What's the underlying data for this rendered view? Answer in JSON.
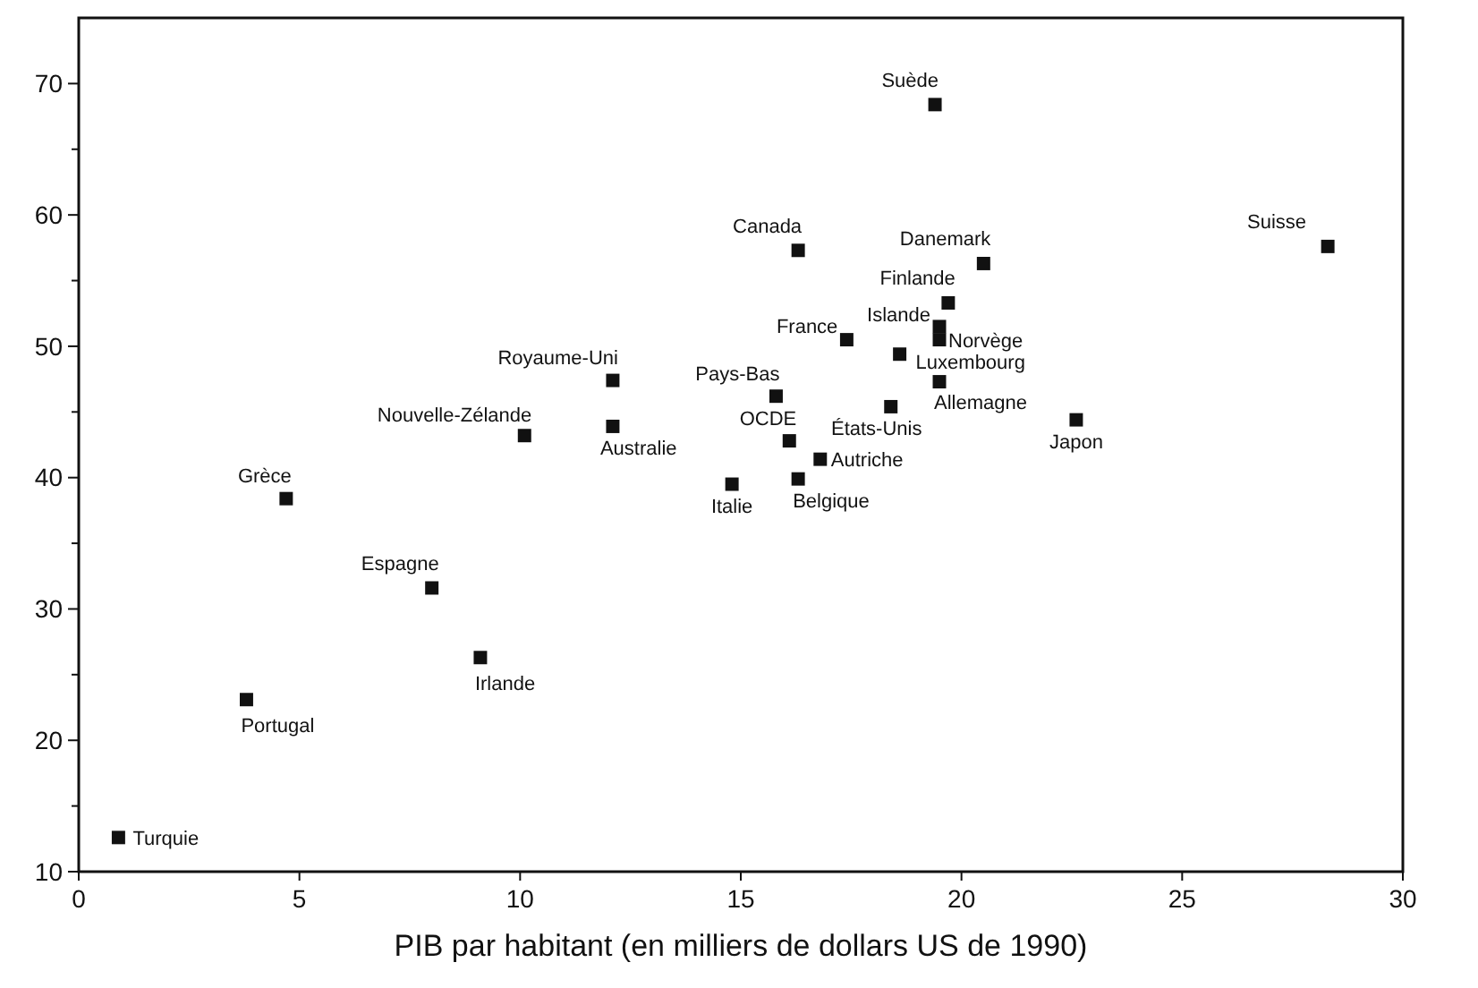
{
  "chart_data": {
    "type": "scatter",
    "xlabel": "PIB par habitant (en milliers de dollars US de 1990)",
    "xlim": [
      0,
      30
    ],
    "xticks": [
      0,
      5,
      10,
      15,
      20,
      25,
      30
    ],
    "ylim": [
      10,
      75
    ],
    "yticks": [
      10,
      {
        "value": 15,
        "label": null
      },
      20,
      {
        "value": 25,
        "label": null
      },
      30,
      {
        "value": 35,
        "label": null
      },
      40,
      {
        "value": 45,
        "label": null
      },
      50,
      {
        "value": 55,
        "label": null
      },
      60,
      {
        "value": 65,
        "label": null
      },
      70
    ],
    "grid": false,
    "marker": "square",
    "series": [
      {
        "color": "#111111",
        "x": [
          0.9,
          3.8,
          4.7,
          8.0,
          9.1,
          10.1,
          12.1,
          12.1,
          16.3,
          19.4,
          20.5,
          19.7,
          19.5,
          19.5,
          17.4,
          18.6,
          15.8,
          19.5,
          18.4,
          22.6,
          16.1,
          16.8,
          14.8,
          16.3,
          28.3
        ],
        "values": [
          12.6,
          23.1,
          38.4,
          31.6,
          26.3,
          43.2,
          43.9,
          47.4,
          57.3,
          68.4,
          56.3,
          53.3,
          51.5,
          50.5,
          50.5,
          49.4,
          46.2,
          47.3,
          45.4,
          44.4,
          42.8,
          41.4,
          39.5,
          39.9,
          57.6
        ]
      }
    ],
    "annotations": [
      {
        "text": "Turquie",
        "x": 0.9,
        "y": 12.6
      },
      {
        "text": "Portugal",
        "x": 3.8,
        "y": 23.1
      },
      {
        "text": "Grèce",
        "x": 4.7,
        "y": 38.4
      },
      {
        "text": "Espagne",
        "x": 8.0,
        "y": 31.6
      },
      {
        "text": "Irlande",
        "x": 9.1,
        "y": 26.3
      },
      {
        "text": "Nouvelle-Zélande",
        "x": 10.1,
        "y": 43.2
      },
      {
        "text": "Australie",
        "x": 12.1,
        "y": 43.9
      },
      {
        "text": "Royaume-Uni",
        "x": 12.1,
        "y": 47.4
      },
      {
        "text": "Canada",
        "x": 16.3,
        "y": 57.3
      },
      {
        "text": "Suède",
        "x": 19.4,
        "y": 68.4
      },
      {
        "text": "Danemark",
        "x": 20.5,
        "y": 56.3
      },
      {
        "text": "Finlande",
        "x": 19.7,
        "y": 53.3
      },
      {
        "text": "Islande",
        "x": 19.5,
        "y": 51.5
      },
      {
        "text": "Norvège",
        "x": 19.5,
        "y": 50.5
      },
      {
        "text": "France",
        "x": 17.4,
        "y": 50.5
      },
      {
        "text": "Luxembourg",
        "x": 18.6,
        "y": 49.4
      },
      {
        "text": "Pays-Bas",
        "x": 15.8,
        "y": 46.2
      },
      {
        "text": "Allemagne",
        "x": 19.5,
        "y": 47.3
      },
      {
        "text": "États-Unis",
        "x": 18.4,
        "y": 45.4
      },
      {
        "text": "Japon",
        "x": 22.6,
        "y": 44.4
      },
      {
        "text": "OCDE",
        "x": 16.1,
        "y": 42.8
      },
      {
        "text": "Autriche",
        "x": 16.8,
        "y": 41.4
      },
      {
        "text": "Italie",
        "x": 14.8,
        "y": 39.5
      },
      {
        "text": "Belgique",
        "x": 16.3,
        "y": 39.9
      },
      {
        "text": "Suisse",
        "x": 28.3,
        "y": 57.6
      }
    ]
  }
}
